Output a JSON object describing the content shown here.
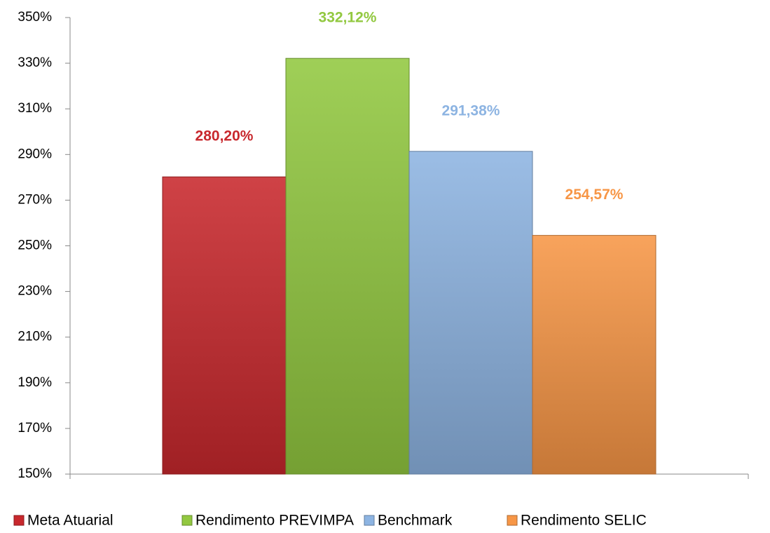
{
  "chart_data": {
    "type": "bar",
    "categories": [
      null
    ],
    "series": [
      {
        "name": "Meta Atuarial",
        "color": "#c8282d",
        "values": [
          280.2
        ],
        "value_labels": [
          "280,20%"
        ]
      },
      {
        "name": "Rendimento PREVIMPA",
        "color": "#92c840",
        "values": [
          332.12
        ],
        "value_labels": [
          "332,12%"
        ]
      },
      {
        "name": "Benchmark",
        "color": "#8db4e2",
        "values": [
          291.38
        ],
        "value_labels": [
          "291,38%"
        ]
      },
      {
        "name": "Rendimento SELIC",
        "color": "#f79646",
        "values": [
          254.57
        ],
        "value_labels": [
          "254,57%"
        ]
      }
    ],
    "ylim": [
      150,
      350
    ],
    "yticks": [
      {
        "value": 150,
        "label": "150%"
      },
      {
        "value": 170,
        "label": "170%"
      },
      {
        "value": 190,
        "label": "190%"
      },
      {
        "value": 210,
        "label": "210%"
      },
      {
        "value": 230,
        "label": "230%"
      },
      {
        "value": 250,
        "label": "250%"
      },
      {
        "value": 270,
        "label": "270%"
      },
      {
        "value": 290,
        "label": "290%"
      },
      {
        "value": 310,
        "label": "310%"
      },
      {
        "value": 330,
        "label": "330%"
      },
      {
        "value": 350,
        "label": "350%"
      }
    ],
    "legend": "bottom",
    "grid": false
  }
}
